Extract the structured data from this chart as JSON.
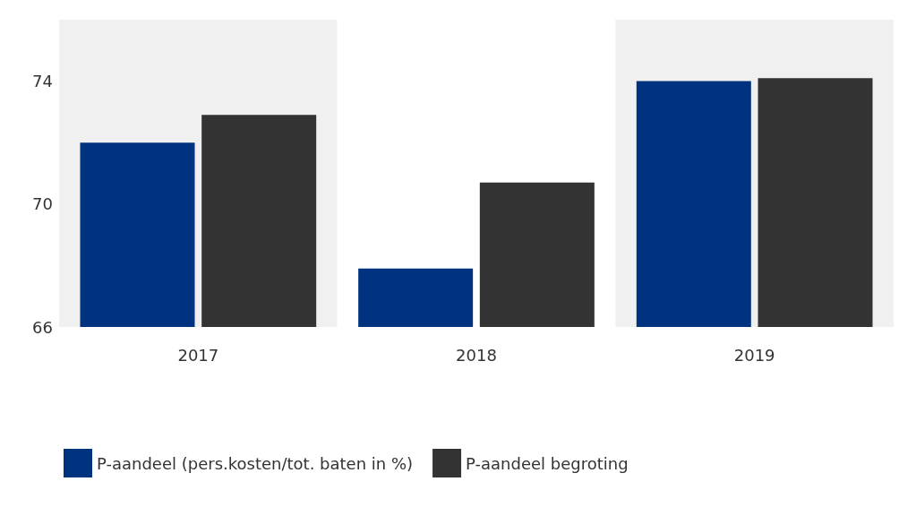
{
  "chart_data": {
    "type": "bar",
    "categories": [
      "2017",
      "2018",
      "2019"
    ],
    "series": [
      {
        "name": "P-aandeel (pers.kosten/tot. baten in %)",
        "color": "#00337f",
        "values": [
          72.0,
          67.9,
          74.0
        ]
      },
      {
        "name": "P-aandeel begroting",
        "color": "#333333",
        "values": [
          72.9,
          70.7,
          74.1
        ]
      }
    ],
    "ylim": [
      66,
      76
    ],
    "yticks": [
      66,
      70,
      74
    ],
    "grid": false,
    "legend": "bottom left",
    "bands": [
      {
        "axis": "x",
        "from": "2017",
        "to": "2017",
        "color": "#f0f0f0"
      },
      {
        "axis": "x",
        "from": "2019",
        "to": "2019",
        "color": "#f0f0f0"
      }
    ]
  }
}
